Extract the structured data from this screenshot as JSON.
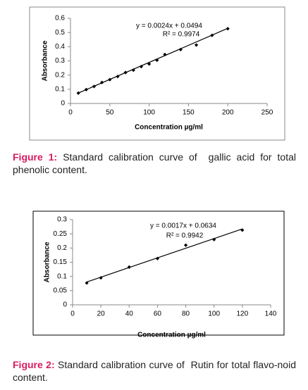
{
  "chart_data": [
    {
      "type": "scatter",
      "x_label": "Concentration µg/ml",
      "y_label": "Absorbance",
      "x": [
        10,
        20,
        30,
        40,
        50,
        60,
        70,
        80,
        90,
        100,
        110,
        120,
        140,
        160,
        180,
        200
      ],
      "values": [
        0.073,
        0.098,
        0.12,
        0.148,
        0.168,
        0.19,
        0.218,
        0.235,
        0.26,
        0.278,
        0.305,
        0.345,
        0.38,
        0.412,
        0.48,
        0.527
      ],
      "color": "#000000",
      "xlim": [
        0,
        250
      ],
      "xticks": [
        0,
        50,
        100,
        150,
        200,
        250
      ],
      "ylim": [
        0,
        0.6
      ],
      "yticks": [
        0,
        0.1,
        0.2,
        0.3,
        0.4,
        0.5,
        0.6
      ],
      "trendline": {
        "slope": 0.0024,
        "intercept": 0.0494,
        "label": "y = 0.0024x + 0.0494",
        "r2_label": "R² = 0.9974"
      }
    },
    {
      "type": "scatter",
      "x_label": "Concentration µg/ml",
      "y_label": "Absorbance",
      "x": [
        10,
        20,
        40,
        60,
        80,
        100,
        120
      ],
      "values": [
        0.077,
        0.095,
        0.133,
        0.163,
        0.21,
        0.23,
        0.263
      ],
      "color": "#000000",
      "xlim": [
        0,
        140
      ],
      "xticks": [
        0,
        20,
        40,
        60,
        80,
        100,
        120,
        140
      ],
      "ylim": [
        0,
        0.3
      ],
      "yticks": [
        0,
        0.05,
        0.1,
        0.15,
        0.2,
        0.25,
        0.3
      ],
      "trendline": {
        "slope": 0.0017,
        "intercept": 0.0634,
        "label": "y = 0.0017x + 0.0634",
        "r2_label": "R² = 0.9942"
      }
    }
  ],
  "captions": [
    {
      "label": "Figure 1:",
      "text": "Standard calibration curve of  gallic acid for total phenolic content."
    },
    {
      "label": "Figure 2:",
      "text": "Standard calibration curve of  Rutin for total flavo-noid content."
    }
  ]
}
